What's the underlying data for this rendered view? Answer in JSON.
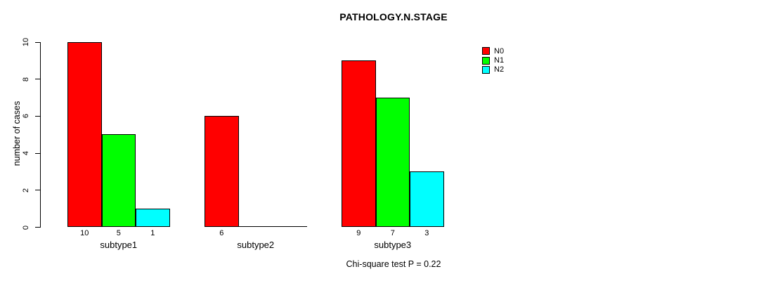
{
  "chart_data": {
    "type": "bar",
    "grouped": true,
    "title": "PATHOLOGY.N.STAGE",
    "categories": [
      "subtype1",
      "subtype2",
      "subtype3"
    ],
    "series": [
      {
        "name": "N0",
        "color": "#ff0000",
        "values": [
          10,
          6,
          9
        ]
      },
      {
        "name": "N1",
        "color": "#00ff00",
        "values": [
          5,
          0,
          7
        ]
      },
      {
        "name": "N2",
        "color": "#00ffff",
        "values": [
          1,
          0,
          3
        ]
      }
    ],
    "bar_value_labels": [
      [
        10,
        5,
        1
      ],
      [
        6,
        null,
        null
      ],
      [
        9,
        7,
        3
      ]
    ],
    "xlabel": "",
    "ylabel": "number of cases",
    "ylim": [
      0,
      10
    ],
    "yticks": [
      0,
      2,
      4,
      6,
      8,
      10
    ],
    "grid": false,
    "legend_position": "top-right",
    "legend_entries": [
      "N0",
      "N1",
      "N2"
    ],
    "annotation": "Chi-square test P = 0.22",
    "bar_border_color": "#000000",
    "axis_color": "#000000"
  }
}
